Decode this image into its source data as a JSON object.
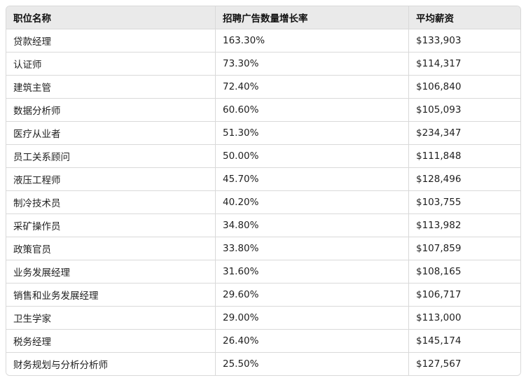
{
  "table": {
    "headers": [
      "职位名称",
      "招聘广告数量增长率",
      "平均薪资"
    ],
    "rows": [
      [
        "贷款经理",
        "163.30%",
        "$133,903"
      ],
      [
        "认证师",
        "73.30%",
        "$114,317"
      ],
      [
        "建筑主管",
        "72.40%",
        "$106,840"
      ],
      [
        "数据分析师",
        "60.60%",
        "$105,093"
      ],
      [
        "医疗从业者",
        "51.30%",
        "$234,347"
      ],
      [
        "员工关系顾问",
        "50.00%",
        "$111,848"
      ],
      [
        "液压工程师",
        "45.70%",
        "$128,496"
      ],
      [
        "制冷技术员",
        "40.20%",
        "$103,755"
      ],
      [
        "采矿操作员",
        "34.80%",
        "$113,982"
      ],
      [
        "政策官员",
        "33.80%",
        "$107,859"
      ],
      [
        "业务发展经理",
        "31.60%",
        "$108,165"
      ],
      [
        "销售和业务发展经理",
        "29.60%",
        "$106,717"
      ],
      [
        "卫生学家",
        "29.00%",
        "$113,000"
      ],
      [
        "税务经理",
        "26.40%",
        "$145,174"
      ],
      [
        "财务规划与分析分析师",
        "25.50%",
        "$127,567"
      ]
    ]
  }
}
